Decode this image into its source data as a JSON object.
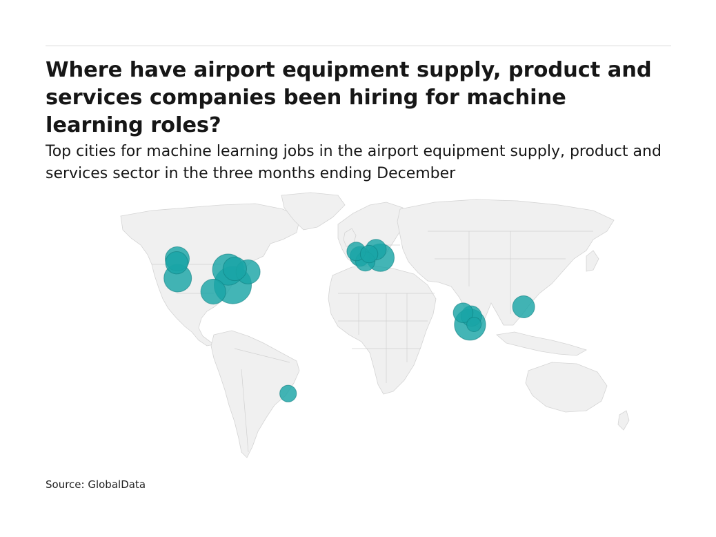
{
  "header": {
    "title": "Where have airport equipment supply, product and services companies been hiring for machine learning roles?",
    "subtitle": "Top cities for machine learning jobs in the airport equipment supply, product and services sector in the three months ending December"
  },
  "footer": {
    "source": "Source: GlobalData"
  },
  "colors": {
    "bubble": "#1aa5a6",
    "land": "#f0f0f0",
    "rule": "#d9d9d9"
  },
  "chart_data": {
    "type": "bubble-map",
    "projection": "equirectangular",
    "note_on_values": "bubble sizes are relative; no values printed",
    "points": [
      {
        "lat": 47.6,
        "lon": -122.3,
        "size": 0.42
      },
      {
        "lat": 45.5,
        "lon": -122.7,
        "size": 0.36
      },
      {
        "lat": 37.4,
        "lon": -122.0,
        "size": 0.55
      },
      {
        "lat": 30.3,
        "lon": -97.7,
        "size": 0.45
      },
      {
        "lat": 41.9,
        "lon": -87.6,
        "size": 0.7
      },
      {
        "lat": 33.7,
        "lon": -84.4,
        "size": 1.0
      },
      {
        "lat": 42.3,
        "lon": -83.0,
        "size": 0.4
      },
      {
        "lat": 40.7,
        "lon": -74.0,
        "size": 0.42
      },
      {
        "lat": -23.5,
        "lon": -46.6,
        "size": 0.2
      },
      {
        "lat": 51.5,
        "lon": -0.1,
        "size": 0.25
      },
      {
        "lat": 48.9,
        "lon": 2.4,
        "size": 0.28
      },
      {
        "lat": 46.2,
        "lon": 6.1,
        "size": 0.27
      },
      {
        "lat": 50.1,
        "lon": 8.7,
        "size": 0.22
      },
      {
        "lat": 52.5,
        "lon": 13.4,
        "size": 0.3
      },
      {
        "lat": 48.2,
        "lon": 16.4,
        "size": 0.55
      },
      {
        "lat": 19.1,
        "lon": 72.9,
        "size": 0.28
      },
      {
        "lat": 12.9,
        "lon": 77.6,
        "size": 0.7
      },
      {
        "lat": 17.4,
        "lon": 78.5,
        "size": 0.3
      },
      {
        "lat": 13.0,
        "lon": 80.3,
        "size": 0.15
      },
      {
        "lat": 22.3,
        "lon": 114.2,
        "size": 0.35
      }
    ]
  }
}
